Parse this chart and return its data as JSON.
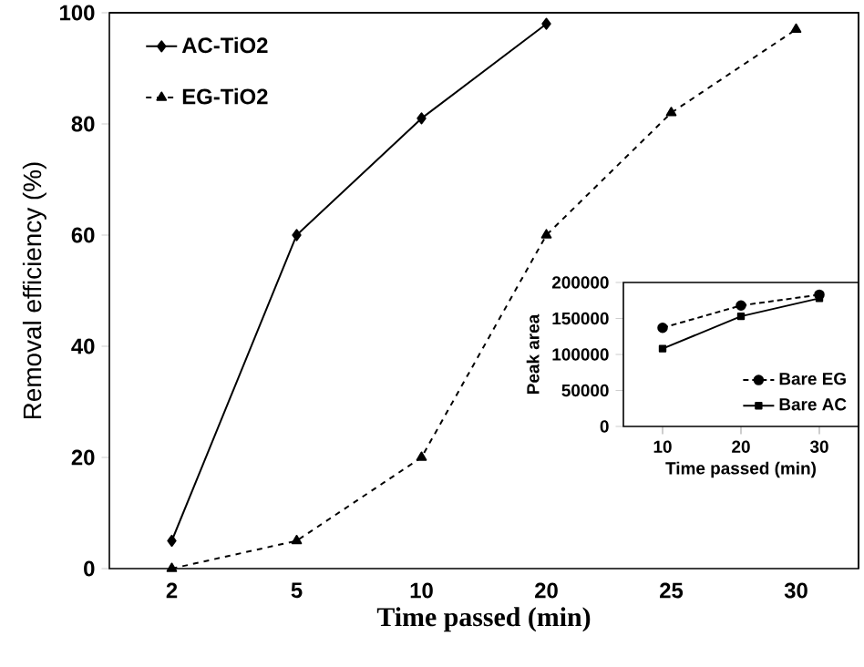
{
  "chart_data": [
    {
      "type": "line",
      "xlabel": "Time passed (min)",
      "ylabel": "Removal efficiency (%)",
      "categories": [
        "2",
        "5",
        "10",
        "20",
        "25",
        "30"
      ],
      "ylim": [
        0,
        100
      ],
      "yticks": [
        0,
        20,
        40,
        60,
        80,
        100
      ],
      "legend": "top left",
      "grid": false,
      "series": [
        {
          "name": "AC-TiO2",
          "color": "#000000",
          "marker": "diamond",
          "line_style": "solid",
          "values": [
            5,
            60,
            81,
            98,
            null,
            null
          ]
        },
        {
          "name": "EG-TiO2",
          "color": "#000000",
          "marker": "triangle",
          "line_style": "dashed",
          "values": [
            0,
            5,
            20,
            60,
            82,
            97
          ]
        }
      ]
    },
    {
      "type": "line",
      "xlabel": "Time passed (min)",
      "ylabel": "Peak area",
      "categories": [
        "10",
        "20",
        "30"
      ],
      "ylim": [
        0,
        200000
      ],
      "yticks": [
        0,
        50000,
        100000,
        150000,
        200000
      ],
      "legend": "bottom right",
      "grid": false,
      "series": [
        {
          "name": "Bare EG",
          "color": "#000000",
          "marker": "circle",
          "line_style": "dotted",
          "values": [
            137000,
            168000,
            183000
          ]
        },
        {
          "name": "Bare AC",
          "color": "#000000",
          "marker": "square",
          "line_style": "solid",
          "values": [
            108000,
            153000,
            178000
          ]
        }
      ]
    }
  ]
}
